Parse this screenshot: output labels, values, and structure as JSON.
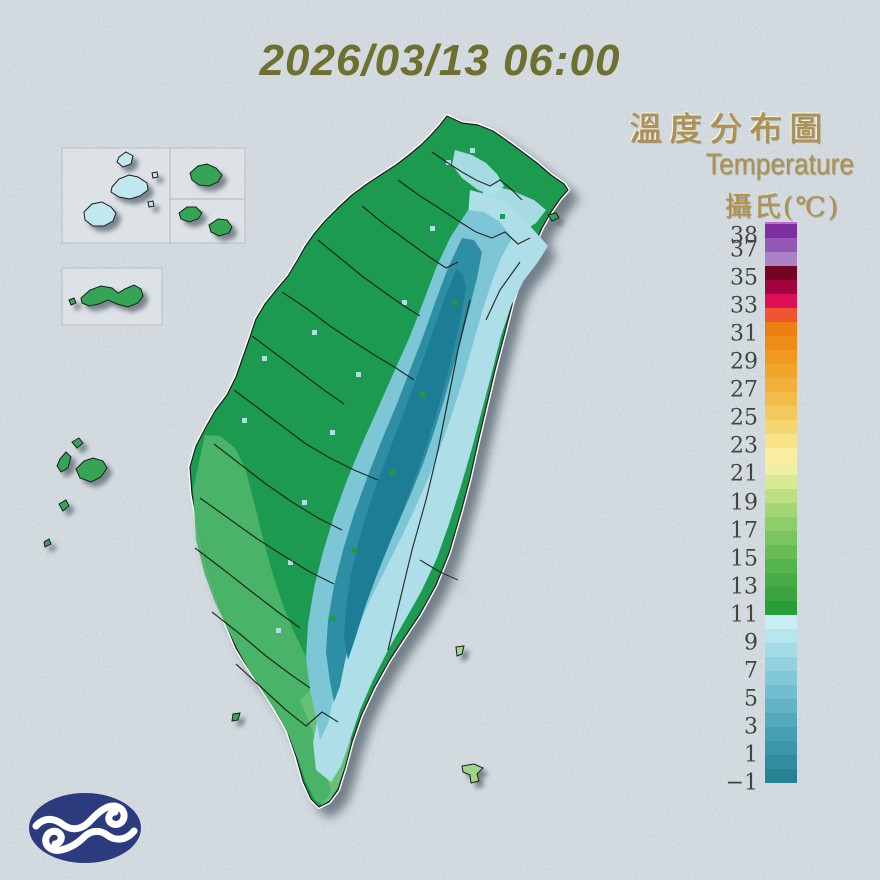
{
  "title": "2026/03/13 06:00",
  "legend": {
    "title_zh": "溫度分布圖",
    "title_en": "Temperature",
    "unit_zh": "攝氏(℃)",
    "ticks": [
      {
        "value": 38,
        "text": "38"
      },
      {
        "value": 37,
        "text": "37"
      },
      {
        "value": 35,
        "text": "35"
      },
      {
        "value": 33,
        "text": "33"
      },
      {
        "value": 31,
        "text": "31"
      },
      {
        "value": 29,
        "text": "29"
      },
      {
        "value": 27,
        "text": "27"
      },
      {
        "value": 25,
        "text": "25"
      },
      {
        "value": 23,
        "text": "23"
      },
      {
        "value": 21,
        "text": "21"
      },
      {
        "value": 19,
        "text": "19"
      },
      {
        "value": 17,
        "text": "17"
      },
      {
        "value": 15,
        "text": "15"
      },
      {
        "value": 13,
        "text": "13"
      },
      {
        "value": 11,
        "text": "11"
      },
      {
        "value": 9,
        "text": "9"
      },
      {
        "value": 7,
        "text": "7"
      },
      {
        "value": 5,
        "text": "5"
      },
      {
        "value": 3,
        "text": "3"
      },
      {
        "value": 1,
        "text": "1"
      },
      {
        "value": -1,
        "text": "−1"
      }
    ]
  },
  "colorbar": {
    "unit": "°C",
    "min": -1,
    "max": 39,
    "segments": [
      {
        "t": 38,
        "color": "#7D2FA0"
      },
      {
        "t": 37,
        "color": "#9459B6"
      },
      {
        "t": 36,
        "color": "#AB82C6"
      },
      {
        "t": 35,
        "color": "#740420"
      },
      {
        "t": 34,
        "color": "#A3033E"
      },
      {
        "t": 33,
        "color": "#DE0F55"
      },
      {
        "t": 32,
        "color": "#EF5430"
      },
      {
        "t": 31,
        "color": "#ED7E12"
      },
      {
        "t": 30,
        "color": "#EE8C15"
      },
      {
        "t": 29,
        "color": "#EF991F"
      },
      {
        "t": 28,
        "color": "#F0A52B"
      },
      {
        "t": 27,
        "color": "#F1B039"
      },
      {
        "t": 26,
        "color": "#F2BC49"
      },
      {
        "t": 25,
        "color": "#F4C95B"
      },
      {
        "t": 24,
        "color": "#F6D670"
      },
      {
        "t": 23,
        "color": "#F9E389"
      },
      {
        "t": 22,
        "color": "#FBEDA2"
      },
      {
        "t": 21,
        "color": "#EFEFA6"
      },
      {
        "t": 20,
        "color": "#D8E895"
      },
      {
        "t": 19,
        "color": "#BCDF84"
      },
      {
        "t": 18,
        "color": "#A3D676"
      },
      {
        "t": 17,
        "color": "#8DCE6A"
      },
      {
        "t": 16,
        "color": "#79C560"
      },
      {
        "t": 15,
        "color": "#67BC56"
      },
      {
        "t": 14,
        "color": "#56B44D"
      },
      {
        "t": 13,
        "color": "#47AC46"
      },
      {
        "t": 12,
        "color": "#39A440"
      },
      {
        "t": 11,
        "color": "#2B9C3A"
      },
      {
        "t": 10,
        "color": "#C9EFF4"
      },
      {
        "t": 9,
        "color": "#B6E6EE"
      },
      {
        "t": 8,
        "color": "#A3DCE7"
      },
      {
        "t": 7,
        "color": "#92D2E0"
      },
      {
        "t": 6,
        "color": "#81C8D7"
      },
      {
        "t": 5,
        "color": "#71BECE"
      },
      {
        "t": 4,
        "color": "#62B4C5"
      },
      {
        "t": 3,
        "color": "#54AABC"
      },
      {
        "t": 2,
        "color": "#47A0B2"
      },
      {
        "t": 1,
        "color": "#3B96A8"
      },
      {
        "t": 0,
        "color": "#308C9E"
      },
      {
        "t": -1,
        "color": "#268293"
      }
    ]
  },
  "map": {
    "palette": {
      "sea_background": "#CBD4DA",
      "lowland_green": "#1F9A50",
      "lowland_green_south": "#4DB468",
      "south_tip_green": "#68C178",
      "foothill_cyan_pale": "#AEDFE9",
      "mid_cyan": "#7CC6D5",
      "mountain_teal": "#2E8FA4",
      "mountain_teal_dark": "#1E7D95",
      "inset_panel": "#DCE2E6",
      "matsu_cyan": "#C2E8EF",
      "island_green": "#35A455",
      "orchid_island_green": "#9ED68A",
      "coastline": "#1A1A1A",
      "coast_highlight": "#FFFFFF",
      "logo_navy": "#2C3B7D",
      "logo_swirl": "#FFFFFF"
    }
  }
}
